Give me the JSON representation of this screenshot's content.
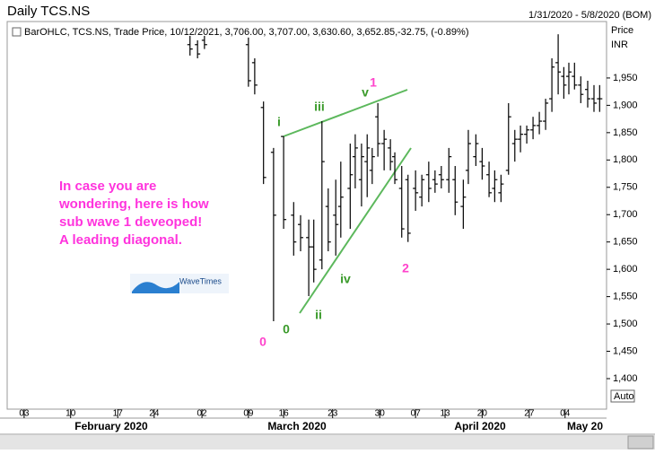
{
  "header": {
    "title": "Daily TCS.NS",
    "range": "1/31/2020 - 5/8/2020 (BOM)",
    "legend_main": "BarOHLC, TCS.NS, Trade Price, 10/12/2021, 3,706.00, 3,707.00, 3,630.60, 3,652.85,",
    "legend_change": "-32.75, (-0.89%)",
    "axis_unit_1": "Price",
    "axis_unit_2": "INR",
    "scale_mode": "Auto"
  },
  "chart_data": {
    "type": "ohlc",
    "color": "#000000",
    "x": [
      26.4,
      27.6,
      28.7,
      35.7,
      36.7,
      38.1,
      39.7,
      41.3,
      42.9,
      44,
      45.3,
      46.1,
      47.4,
      48.4,
      49.6,
      50.4,
      51.9,
      52.7,
      53.7,
      54.6,
      55.4,
      56.3,
      57.3,
      58.3,
      59,
      60.1,
      61.1,
      62.3,
      63.3,
      64.4,
      65.4,
      66.4,
      67.6,
      68.6,
      69.9,
      70.7,
      71.9,
      72.9,
      74,
      74.9,
      75.9,
      77.1,
      78.1,
      79,
      80,
      81,
      82,
      83,
      84,
      85,
      85.9,
      86.7,
      87.6,
      88.6,
      89.7,
      90.7,
      91.6
    ],
    "open": [
      2011,
      2011,
      2019,
      2011,
      1978,
      1896,
      1814,
      1843,
      1699,
      1682,
      1658,
      1641,
      1617,
      1715,
      1699,
      1715,
      1748,
      1806,
      1764,
      1797,
      1781,
      1879,
      1830,
      1822,
      1806,
      1748,
      1764,
      1748,
      1732,
      1773,
      1764,
      1773,
      1764,
      1764,
      1715,
      1781,
      1806,
      1797,
      1773,
      1748,
      1740,
      1781,
      1830,
      1838,
      1847,
      1855,
      1863,
      1871,
      1912,
      1978,
      1953,
      1953,
      1953,
      1937,
      1929,
      1912,
      1912
    ],
    "high": [
      2027,
      2019,
      2027,
      2024,
      1986,
      1907,
      1822,
      1843,
      1723,
      1699,
      1691,
      1691,
      1871,
      1748,
      1764,
      1797,
      1830,
      1847,
      1830,
      1847,
      1822,
      1904,
      1855,
      1838,
      1814,
      1789,
      1773,
      1781,
      1773,
      1797,
      1781,
      1789,
      1822,
      1789,
      1764,
      1855,
      1847,
      1822,
      1797,
      1781,
      1773,
      1904,
      1855,
      1863,
      1863,
      1879,
      1888,
      1912,
      1986,
      2030,
      1970,
      1978,
      1978,
      1953,
      1945,
      1937,
      1937
    ],
    "low": [
      1991,
      1986,
      2003,
      1934,
      1920,
      1756,
      1505,
      1674,
      1625,
      1633,
      1551,
      1576,
      1600,
      1633,
      1625,
      1658,
      1674,
      1748,
      1715,
      1732,
      1756,
      1806,
      1781,
      1781,
      1756,
      1658,
      1650,
      1707,
      1715,
      1723,
      1740,
      1748,
      1740,
      1699,
      1674,
      1756,
      1789,
      1764,
      1732,
      1723,
      1723,
      1773,
      1797,
      1814,
      1830,
      1838,
      1847,
      1855,
      1888,
      1920,
      1912,
      1920,
      1929,
      1904,
      1896,
      1888,
      1888
    ],
    "close": [
      2003,
      1994,
      2011,
      1945,
      1937,
      1768,
      1699,
      1691,
      1650,
      1658,
      1641,
      1600,
      1797,
      1650,
      1682,
      1732,
      1773,
      1822,
      1806,
      1822,
      1806,
      1830,
      1838,
      1797,
      1764,
      1674,
      1666,
      1740,
      1764,
      1748,
      1756,
      1764,
      1806,
      1723,
      1732,
      1830,
      1830,
      1789,
      1740,
      1764,
      1756,
      1879,
      1838,
      1847,
      1855,
      1863,
      1871,
      1904,
      1970,
      1961,
      1937,
      1961,
      1937,
      1920,
      1912,
      1904,
      1912
    ],
    "ylim": [
      1345,
      2050
    ],
    "yticks": [
      {
        "value": 1400,
        "label": "1,400"
      },
      {
        "value": 1450,
        "label": "1,450"
      },
      {
        "value": 1500,
        "label": "1,500"
      },
      {
        "value": 1550,
        "label": "1,550"
      },
      {
        "value": 1600,
        "label": "1,600"
      },
      {
        "value": 1650,
        "label": "1,650"
      },
      {
        "value": 1700,
        "label": "1,700"
      },
      {
        "value": 1750,
        "label": "1,750"
      },
      {
        "value": 1800,
        "label": "1,800"
      },
      {
        "value": 1850,
        "label": "1,850"
      },
      {
        "value": 1900,
        "label": "1,900"
      },
      {
        "value": 1950,
        "label": "1,950"
      }
    ],
    "xlim": [
      -1.7,
      92.7
    ],
    "xticks": [
      {
        "value": 0,
        "label": "03"
      },
      {
        "value": 7.4,
        "label": "10"
      },
      {
        "value": 14.9,
        "label": "17"
      },
      {
        "value": 20.7,
        "label": "24"
      },
      {
        "value": 28.3,
        "label": "02"
      },
      {
        "value": 35.7,
        "label": "09"
      },
      {
        "value": 41.3,
        "label": "16"
      },
      {
        "value": 49.1,
        "label": "23"
      },
      {
        "value": 56.6,
        "label": "30"
      },
      {
        "value": 62.3,
        "label": "07"
      },
      {
        "value": 67,
        "label": "13"
      },
      {
        "value": 72.9,
        "label": "20"
      },
      {
        "value": 80.4,
        "label": "27"
      },
      {
        "value": 86.1,
        "label": "04"
      }
    ],
    "months": [
      "February 2020",
      "March 2020",
      "April 2020",
      "May 20"
    ],
    "wave_labels": [
      {
        "text": "0",
        "color": "#ff44cc"
      },
      {
        "text": "0",
        "color": "#3a9a2a"
      },
      {
        "text": "i",
        "color": "#3a9a2a"
      },
      {
        "text": "ii",
        "color": "#3a9a2a"
      },
      {
        "text": "iii",
        "color": "#3a9a2a"
      },
      {
        "text": "iv",
        "color": "#3a9a2a"
      },
      {
        "text": "v",
        "color": "#3a9a2a"
      },
      {
        "text": "1",
        "color": "#ff44cc"
      },
      {
        "text": "2",
        "color": "#ff44cc"
      }
    ],
    "note": [
      "In case you are",
      "wondering, here is how",
      "sub wave 1 deveoped!",
      "A leading diagonal."
    ],
    "note_color": "#ff33dd",
    "logo_text": "WaveTimes"
  }
}
